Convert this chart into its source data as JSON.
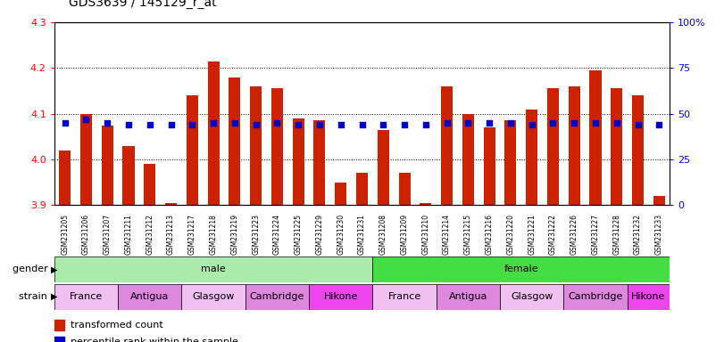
{
  "title": "GDS3639 / 145129_r_at",
  "samples": [
    "GSM231205",
    "GSM231206",
    "GSM231207",
    "GSM231211",
    "GSM231212",
    "GSM231213",
    "GSM231217",
    "GSM231218",
    "GSM231219",
    "GSM231223",
    "GSM231224",
    "GSM231225",
    "GSM231229",
    "GSM231230",
    "GSM231231",
    "GSM231208",
    "GSM231209",
    "GSM231210",
    "GSM231214",
    "GSM231215",
    "GSM231216",
    "GSM231220",
    "GSM231221",
    "GSM231222",
    "GSM231226",
    "GSM231227",
    "GSM231228",
    "GSM231232",
    "GSM231233"
  ],
  "red_values": [
    4.02,
    4.1,
    4.075,
    4.03,
    3.99,
    3.905,
    4.14,
    4.215,
    4.18,
    4.16,
    4.155,
    4.09,
    4.085,
    3.95,
    3.97,
    4.065,
    3.97,
    3.905,
    4.16,
    4.1,
    4.07,
    4.085,
    4.11,
    4.155,
    4.16,
    4.195,
    4.155,
    4.14,
    3.92
  ],
  "percentile_values": [
    45,
    47,
    45,
    44,
    44,
    44,
    44,
    45,
    45,
    44,
    45,
    44,
    44,
    44,
    44,
    44,
    44,
    44,
    45,
    45,
    45,
    45,
    44,
    45,
    45,
    45,
    45,
    44,
    44
  ],
  "ylim_left": [
    3.9,
    4.3
  ],
  "ylim_right": [
    0,
    100
  ],
  "yticks_left": [
    3.9,
    4.0,
    4.1,
    4.2,
    4.3
  ],
  "yticks_right": [
    0,
    25,
    50,
    75,
    100
  ],
  "ytick_labels_right": [
    "0",
    "25",
    "50",
    "75",
    "100%"
  ],
  "gender_groups": [
    {
      "label": "male",
      "start": 0,
      "end": 15,
      "color": "#AAEAAA"
    },
    {
      "label": "female",
      "start": 15,
      "end": 29,
      "color": "#44DD44"
    }
  ],
  "strain_groups": [
    {
      "label": "France",
      "start": 0,
      "end": 3,
      "color": "#F0C0F0"
    },
    {
      "label": "Antigua",
      "start": 3,
      "end": 6,
      "color": "#DD88DD"
    },
    {
      "label": "Glasgow",
      "start": 6,
      "end": 9,
      "color": "#F0C0F0"
    },
    {
      "label": "Cambridge",
      "start": 9,
      "end": 12,
      "color": "#DD88DD"
    },
    {
      "label": "Hikone",
      "start": 12,
      "end": 15,
      "color": "#EE44EE"
    },
    {
      "label": "France",
      "start": 15,
      "end": 18,
      "color": "#F0C0F0"
    },
    {
      "label": "Antigua",
      "start": 18,
      "end": 21,
      "color": "#DD88DD"
    },
    {
      "label": "Glasgow",
      "start": 21,
      "end": 24,
      "color": "#F0C0F0"
    },
    {
      "label": "Cambridge",
      "start": 24,
      "end": 27,
      "color": "#DD88DD"
    },
    {
      "label": "Hikone",
      "start": 27,
      "end": 29,
      "color": "#EE44EE"
    }
  ],
  "bar_color": "#CC2200",
  "dot_color": "#0000CC",
  "base": 3.9,
  "bar_width": 0.55,
  "background_color": "#FFFFFF",
  "label_fontsize": 7,
  "title_fontsize": 10,
  "xtick_fontsize": 5.5
}
